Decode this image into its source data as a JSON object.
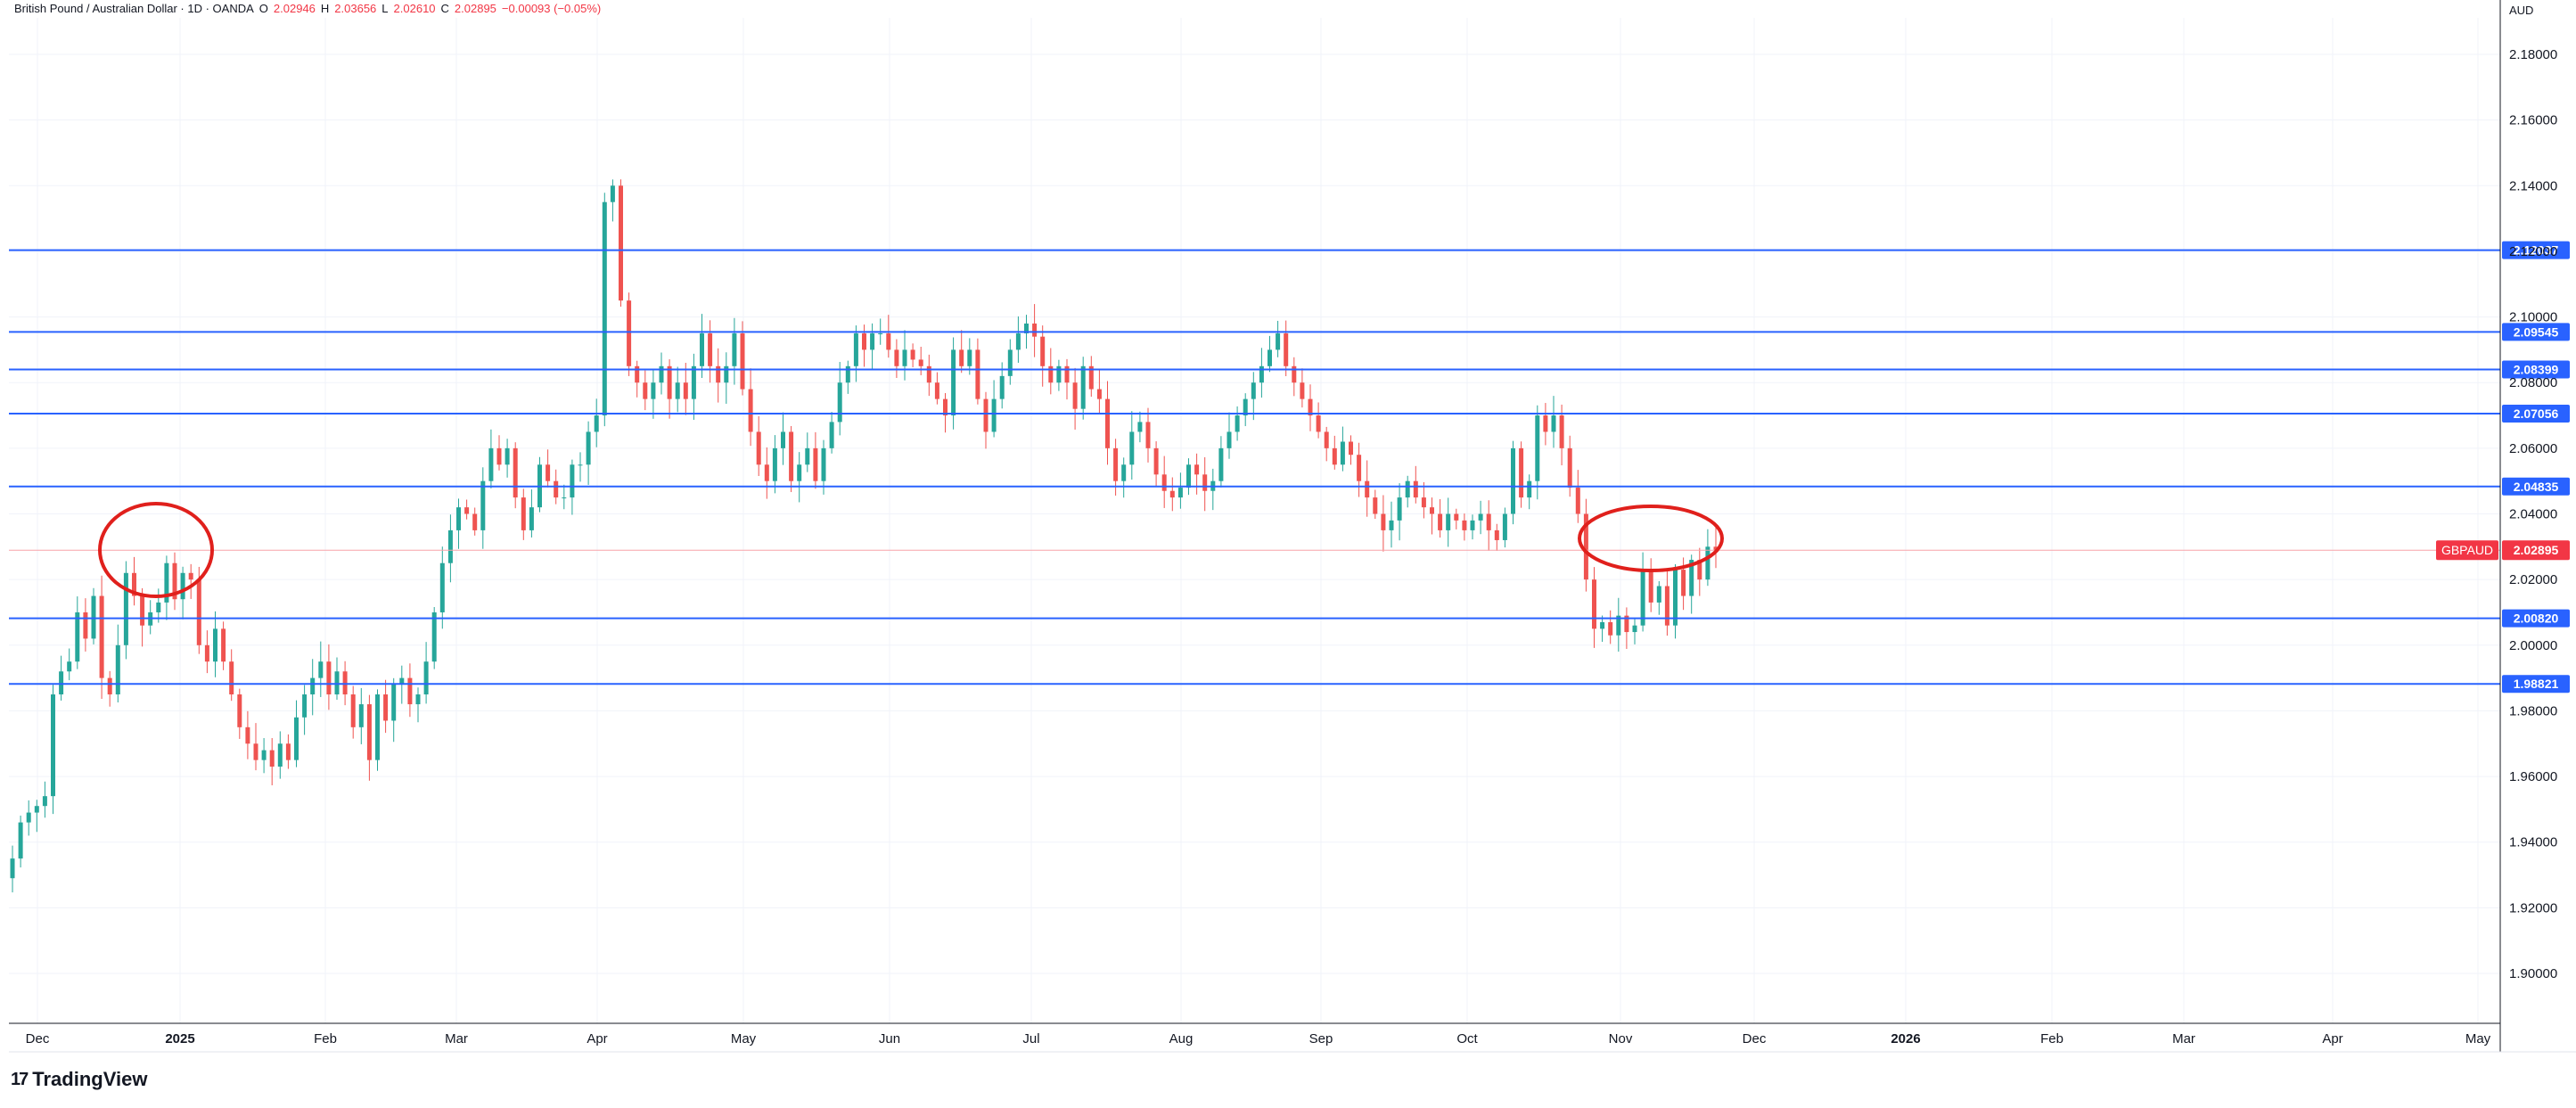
{
  "header": {
    "symbol_title": "British Pound / Australian Dollar · 1D · OANDA",
    "o_label": "O",
    "o_value": "2.02946",
    "h_label": "H",
    "h_value": "2.03656",
    "l_label": "L",
    "l_value": "2.02610",
    "c_label": "C",
    "c_value": "2.02895",
    "change": "−0.00093 (−0.05%)"
  },
  "axis": {
    "currency": "AUD"
  },
  "branding": {
    "logo_text": "TradingView",
    "logo_icon": "tradingview-logo-icon"
  },
  "colors": {
    "up": "#26a69a",
    "down": "#ef5350",
    "hline": "#2962ff",
    "circle": "#e0201c",
    "price": "#f23645"
  },
  "chart_data": {
    "type": "candlestick",
    "symbol": "GBPAUD",
    "ylim": [
      1.885,
      2.185
    ],
    "y_ticks": [
      "1.90000",
      "1.92000",
      "1.94000",
      "1.96000",
      "1.98000",
      "2.00000",
      "2.02000",
      "2.04000",
      "2.06000",
      "2.08000",
      "2.10000",
      "2.12000",
      "2.14000",
      "2.16000",
      "2.18000"
    ],
    "x_ticks": [
      "Dec",
      "2025",
      "Feb",
      "Mar",
      "Apr",
      "May",
      "Jun",
      "Jul",
      "Aug",
      "Sep",
      "Oct",
      "Nov",
      "Dec",
      "2026",
      "Feb",
      "Mar",
      "Apr",
      "May"
    ],
    "current_price": {
      "label": "GBPAUD",
      "value": 2.02895,
      "text": "2.02895"
    },
    "horizontal_levels": [
      {
        "value": 2.12037,
        "text": "2.12037"
      },
      {
        "value": 2.09545,
        "text": "2.09545"
      },
      {
        "value": 2.08399,
        "text": "2.08399"
      },
      {
        "value": 2.07056,
        "text": "2.07056"
      },
      {
        "value": 2.04835,
        "text": "2.04835"
      },
      {
        "value": 2.0082,
        "text": "2.00820"
      },
      {
        "value": 1.98821,
        "text": "1.98821"
      }
    ],
    "circled_areas": [
      {
        "near_date": "Dec 2024",
        "center_price": 2.028
      },
      {
        "near_date": "Nov 2025",
        "center_price": 2.032
      }
    ],
    "closes": [
      1.935,
      1.946,
      1.949,
      1.951,
      1.954,
      1.985,
      1.992,
      1.995,
      2.01,
      2.002,
      2.015,
      1.99,
      1.985,
      2.0,
      2.022,
      2.015,
      2.006,
      2.01,
      2.013,
      2.025,
      2.014,
      2.022,
      2.02,
      2.0,
      1.995,
      2.005,
      1.995,
      1.985,
      1.975,
      1.97,
      1.965,
      1.968,
      1.963,
      1.97,
      1.965,
      1.978,
      1.985,
      1.99,
      1.995,
      1.985,
      1.992,
      1.985,
      1.975,
      1.982,
      1.965,
      1.985,
      1.977,
      1.988,
      1.99,
      1.982,
      1.985,
      1.995,
      2.01,
      2.025,
      2.035,
      2.042,
      2.04,
      2.035,
      2.05,
      2.06,
      2.055,
      2.06,
      2.045,
      2.035,
      2.042,
      2.055,
      2.05,
      2.045,
      2.045,
      2.055,
      2.055,
      2.065,
      2.07,
      2.135,
      2.14,
      2.105,
      2.085,
      2.08,
      2.075,
      2.08,
      2.085,
      2.075,
      2.08,
      2.075,
      2.085,
      2.095,
      2.085,
      2.08,
      2.085,
      2.095,
      2.078,
      2.065,
      2.055,
      2.05,
      2.06,
      2.065,
      2.05,
      2.055,
      2.06,
      2.05,
      2.06,
      2.068,
      2.08,
      2.085,
      2.095,
      2.09,
      2.095,
      2.095,
      2.09,
      2.085,
      2.09,
      2.087,
      2.085,
      2.08,
      2.075,
      2.07,
      2.09,
      2.085,
      2.09,
      2.075,
      2.065,
      2.075,
      2.082,
      2.09,
      2.095,
      2.098,
      2.094,
      2.085,
      2.08,
      2.085,
      2.08,
      2.072,
      2.085,
      2.078,
      2.075,
      2.06,
      2.05,
      2.055,
      2.065,
      2.068,
      2.06,
      2.052,
      2.047,
      2.045,
      2.048,
      2.055,
      2.052,
      2.047,
      2.05,
      2.06,
      2.065,
      2.07,
      2.075,
      2.08,
      2.085,
      2.09,
      2.095,
      2.085,
      2.08,
      2.075,
      2.07,
      2.065,
      2.06,
      2.055,
      2.062,
      2.058,
      2.05,
      2.045,
      2.04,
      2.035,
      2.038,
      2.045,
      2.05,
      2.045,
      2.042,
      2.04,
      2.035,
      2.04,
      2.038,
      2.035,
      2.038,
      2.04,
      2.035,
      2.032,
      2.04,
      2.06,
      2.045,
      2.05,
      2.07,
      2.065,
      2.07,
      2.06,
      2.048,
      2.04,
      2.02,
      2.005,
      2.007,
      2.003,
      2.009,
      2.004,
      2.006,
      2.023,
      2.013,
      2.018,
      2.006,
      2.023,
      2.015,
      2.026,
      2.02,
      2.03,
      2.029
    ]
  }
}
